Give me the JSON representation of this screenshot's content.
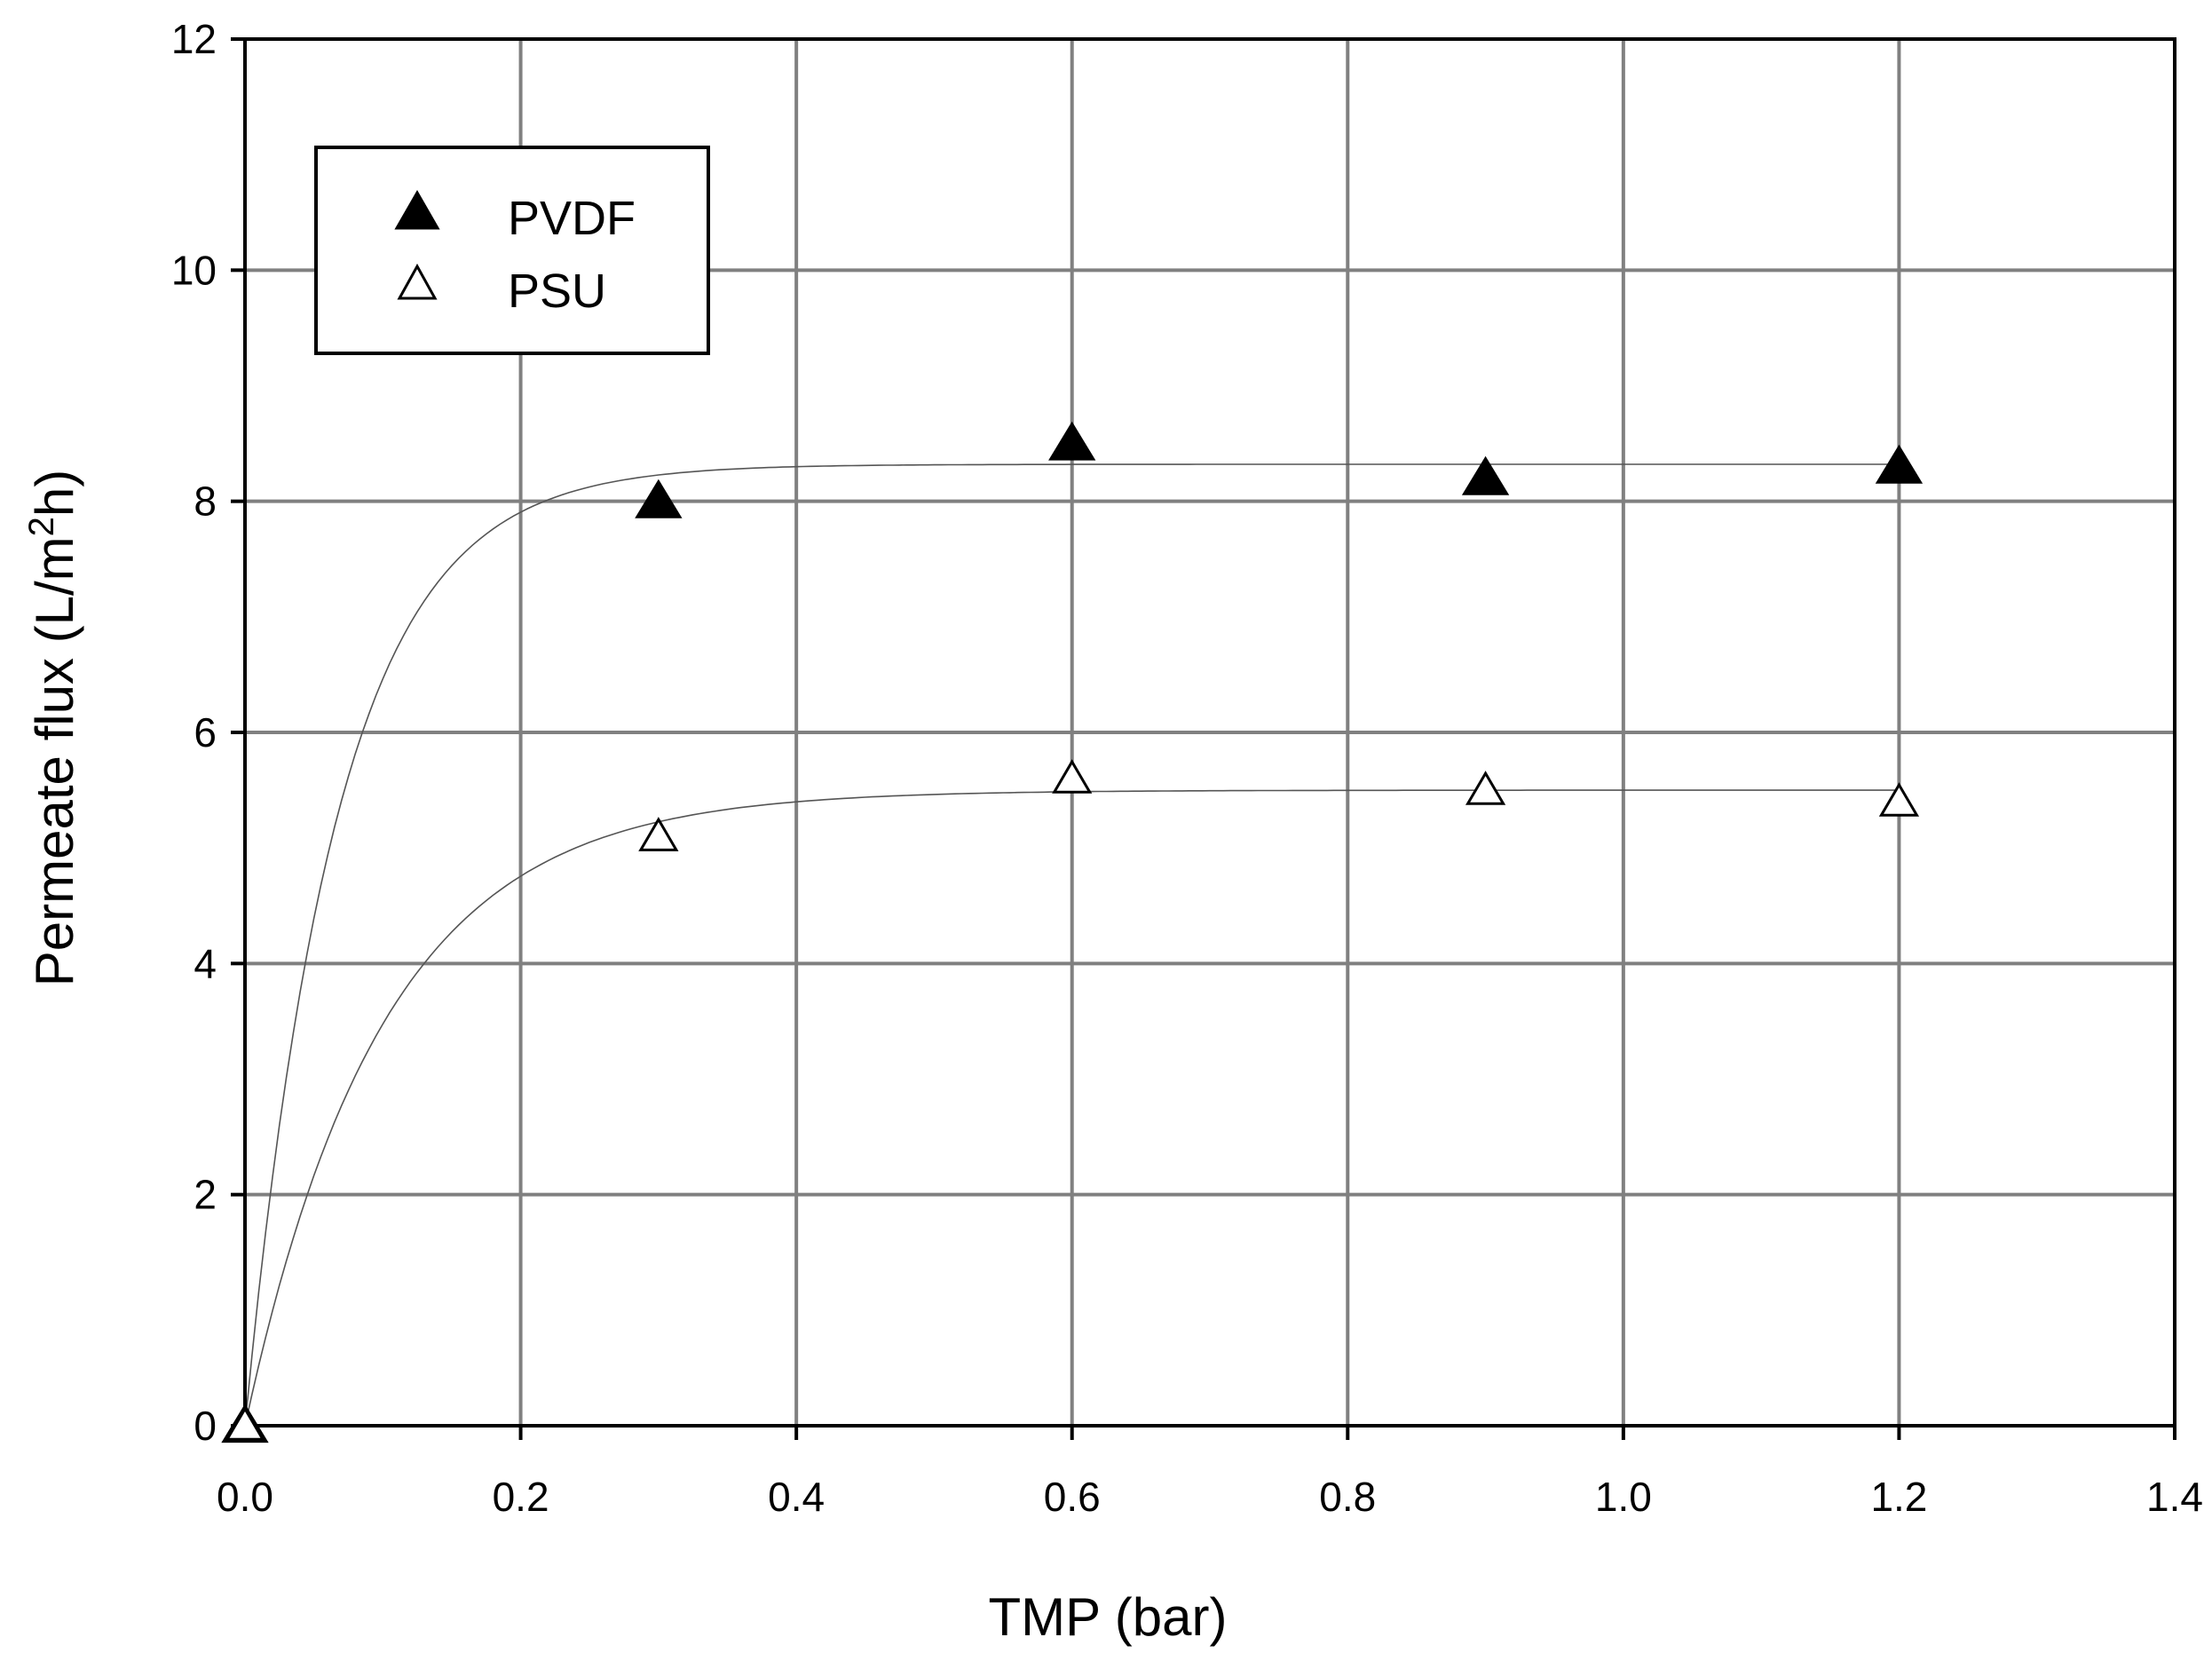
{
  "chart_data": {
    "type": "scatter",
    "xlabel": "TMP (bar)",
    "ylabel_main": "Permeate flux (L/m",
    "ylabel_sup": "2",
    "ylabel_end": "h)",
    "xlim": [
      0,
      1.4
    ],
    "ylim": [
      0,
      12
    ],
    "x_ticks": [
      "0.0",
      "0.2",
      "0.4",
      "0.6",
      "0.8",
      "1.0",
      "1.2",
      "1.4"
    ],
    "y_ticks": [
      "0",
      "2",
      "4",
      "6",
      "8",
      "10",
      "12"
    ],
    "x_tick_values": [
      0,
      0.2,
      0.4,
      0.6,
      0.8,
      1.0,
      1.2,
      1.4
    ],
    "y_tick_values": [
      0,
      2,
      4,
      6,
      8,
      10,
      12
    ],
    "grid": true,
    "legend_position": "top-left",
    "series": [
      {
        "name": "PVDF",
        "marker": "filled-triangle",
        "x": [
          0,
          0.3,
          0.6,
          0.9,
          1.2
        ],
        "y": [
          0,
          8.0,
          8.5,
          8.2,
          8.3
        ],
        "fit": {
          "type": "exponential-rise",
          "a": 8.32,
          "k": 15
        }
      },
      {
        "name": "PSU",
        "marker": "open-triangle",
        "x": [
          0,
          0.3,
          0.6,
          0.9,
          1.2
        ],
        "y": [
          0,
          5.1,
          5.6,
          5.5,
          5.4
        ],
        "fit": {
          "type": "exponential-rise",
          "a": 5.5,
          "k": 10
        }
      }
    ],
    "colors": {
      "grid": "#808080",
      "frame": "#000000",
      "fit": "#555555",
      "marker": "#000000"
    }
  }
}
